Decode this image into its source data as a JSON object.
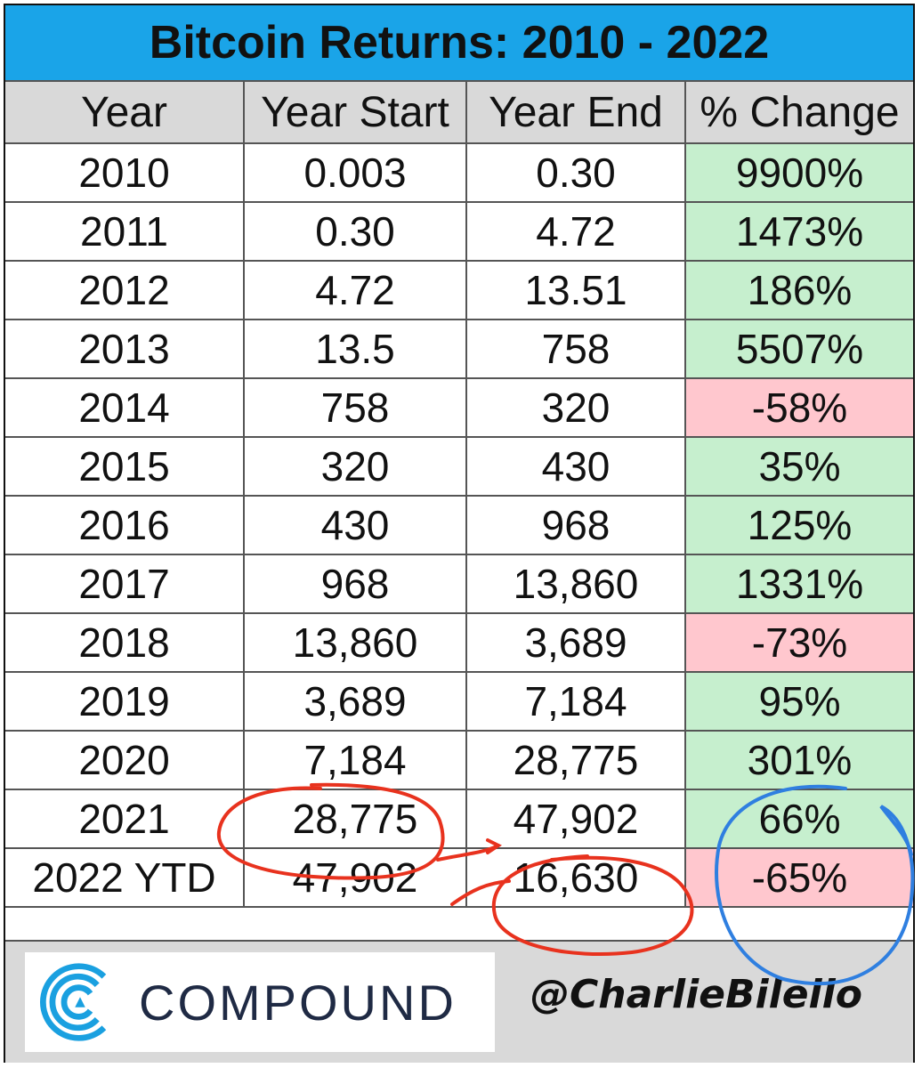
{
  "chart_data": {
    "type": "table",
    "title": "Bitcoin Returns: 2010 - 2022",
    "columns": [
      "Year",
      "Year Start",
      "Year End",
      "% Change"
    ],
    "rows": [
      {
        "year": "2010",
        "start": "0.003",
        "end": "0.30",
        "change": "9900%",
        "direction": "up"
      },
      {
        "year": "2011",
        "start": "0.30",
        "end": "4.72",
        "change": "1473%",
        "direction": "up"
      },
      {
        "year": "2012",
        "start": "4.72",
        "end": "13.51",
        "change": "186%",
        "direction": "up"
      },
      {
        "year": "2013",
        "start": "13.5",
        "end": "758",
        "change": "5507%",
        "direction": "up"
      },
      {
        "year": "2014",
        "start": "758",
        "end": "320",
        "change": "-58%",
        "direction": "down"
      },
      {
        "year": "2015",
        "start": "320",
        "end": "430",
        "change": "35%",
        "direction": "up"
      },
      {
        "year": "2016",
        "start": "430",
        "end": "968",
        "change": "125%",
        "direction": "up"
      },
      {
        "year": "2017",
        "start": "968",
        "end": "13,860",
        "change": "1331%",
        "direction": "up"
      },
      {
        "year": "2018",
        "start": "13,860",
        "end": "3,689",
        "change": "-73%",
        "direction": "down"
      },
      {
        "year": "2019",
        "start": "3,689",
        "end": "7,184",
        "change": "95%",
        "direction": "up"
      },
      {
        "year": "2020",
        "start": "7,184",
        "end": "28,775",
        "change": "301%",
        "direction": "up"
      },
      {
        "year": "2021",
        "start": "28,775",
        "end": "47,902",
        "change": "66%",
        "direction": "up"
      },
      {
        "year": "2022 YTD",
        "start": "47,902",
        "end": "16,630",
        "change": "-65%",
        "direction": "down"
      }
    ]
  },
  "colors": {
    "title_bg": "#1aa4e8",
    "header_bg": "#d9d9d9",
    "positive_bg": "#c6efce",
    "positive_text": "#1d5e20",
    "negative_bg": "#ffc7ce",
    "negative_text": "#9c0006",
    "red_annotation": "#e8321e",
    "blue_annotation": "#2f7fe0"
  },
  "footer": {
    "logo_text": "COMPOUND",
    "logo_icon": "compound-logo-icon",
    "handle": "@CharlieBilello"
  }
}
